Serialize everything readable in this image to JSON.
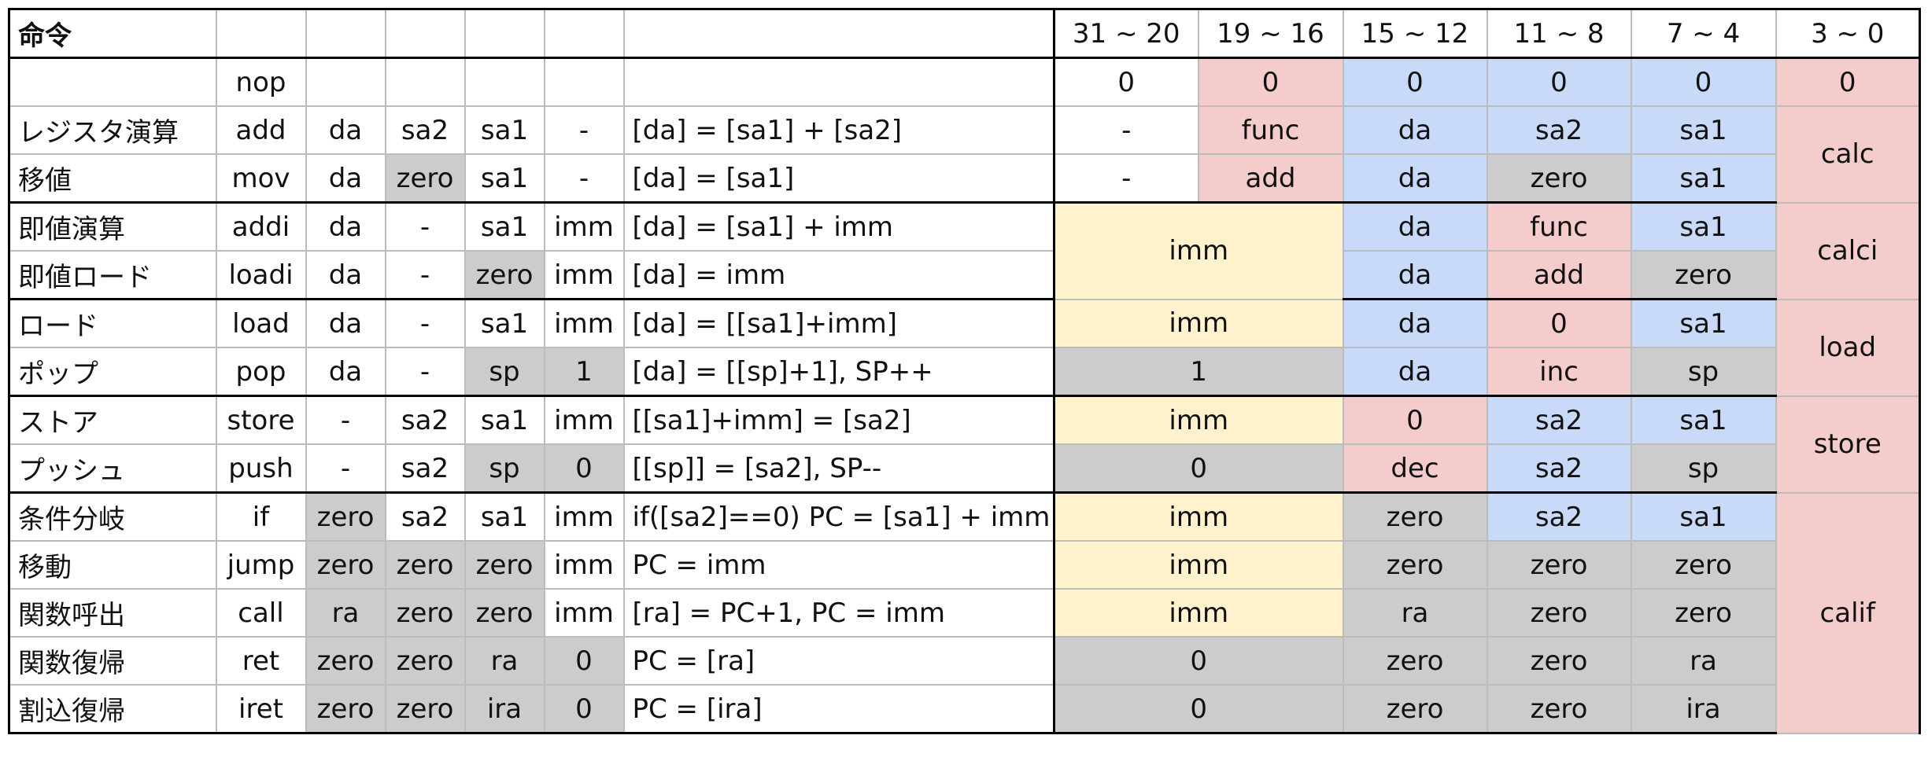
{
  "header": [
    "命令",
    "",
    "",
    "",
    "",
    "",
    "",
    "31 ~ 20",
    "19 ~ 16",
    "15 ~ 12",
    "11 ~ 8",
    "7 ~ 4",
    "3 ~ 0"
  ],
  "rows": {
    "nop": {
      "name": "",
      "mn": "nop",
      "f1": "",
      "f2": "",
      "f3": "",
      "f4": "",
      "desc": "",
      "b31": "0",
      "b19": "0",
      "b15": "0",
      "b11": "0",
      "b7": "0",
      "b3": "0"
    },
    "add": {
      "name": "レジスタ演算",
      "mn": "add",
      "f1": "da",
      "f2": "sa2",
      "f3": "sa1",
      "f4": "-",
      "desc": "[da] = [sa1] + [sa2]",
      "b31": "-",
      "b19": "func",
      "b15": "da",
      "b11": "sa2",
      "b7": "sa1",
      "b3": "calc"
    },
    "mov": {
      "name": "移値",
      "mn": "mov",
      "f1": "da",
      "f2": "zero",
      "f3": "sa1",
      "f4": "-",
      "desc": "[da] = [sa1]",
      "b31": "-",
      "b19": "add",
      "b15": "da",
      "b11": "zero",
      "b7": "sa1"
    },
    "addi": {
      "name": "即値演算",
      "mn": "addi",
      "f1": "da",
      "f2": "-",
      "f3": "sa1",
      "f4": "imm",
      "desc": "[da] = [sa1] + imm",
      "b31": "imm",
      "b15": "da",
      "b11": "func",
      "b7": "sa1",
      "b3": "calci"
    },
    "loadi": {
      "name": "即値ロード",
      "mn": "loadi",
      "f1": "da",
      "f2": "-",
      "f3": "zero",
      "f4": "imm",
      "desc": "[da] = imm",
      "b15": "da",
      "b11": "add",
      "b7": "zero"
    },
    "load": {
      "name": "ロード",
      "mn": "load",
      "f1": "da",
      "f2": "-",
      "f3": "sa1",
      "f4": "imm",
      "desc": "[da] = [[sa1]+imm]",
      "b31": "imm",
      "b15": "da",
      "b11": "0",
      "b7": "sa1",
      "b3": "load"
    },
    "pop": {
      "name": "ポップ",
      "mn": "pop",
      "f1": "da",
      "f2": "-",
      "f3": "sp",
      "f4": "1",
      "desc": "[da] = [[sp]+1], SP++",
      "b31": "1",
      "b15": "da",
      "b11": "inc",
      "b7": "sp"
    },
    "store": {
      "name": "ストア",
      "mn": "store",
      "f1": "-",
      "f2": "sa2",
      "f3": "sa1",
      "f4": "imm",
      "desc": "[[sa1]+imm] = [sa2]",
      "b31": "imm",
      "b15": "0",
      "b11": "sa2",
      "b7": "sa1",
      "b3": "store"
    },
    "push": {
      "name": "プッシュ",
      "mn": "push",
      "f1": "-",
      "f2": "sa2",
      "f3": "sp",
      "f4": "0",
      "desc": "[[sp]] = [sa2], SP--",
      "b31": "0",
      "b15": "dec",
      "b11": "sa2",
      "b7": "sp"
    },
    "if": {
      "name": "条件分岐",
      "mn": "if",
      "f1": "zero",
      "f2": "sa2",
      "f3": "sa1",
      "f4": "imm",
      "desc": "if([sa2]==0) PC = [sa1] + imm",
      "b31": "imm",
      "b15": "zero",
      "b11": "sa2",
      "b7": "sa1",
      "b3": "calif"
    },
    "jump": {
      "name": "移動",
      "mn": "jump",
      "f1": "zero",
      "f2": "zero",
      "f3": "zero",
      "f4": "imm",
      "desc": "PC = imm",
      "b31": "imm",
      "b15": "zero",
      "b11": "zero",
      "b7": "zero"
    },
    "call": {
      "name": "関数呼出",
      "mn": "call",
      "f1": "ra",
      "f2": "zero",
      "f3": "zero",
      "f4": "imm",
      "desc": "[ra] = PC+1, PC = imm",
      "b31": "imm",
      "b15": "ra",
      "b11": "zero",
      "b7": "zero"
    },
    "ret": {
      "name": "関数復帰",
      "mn": "ret",
      "f1": "zero",
      "f2": "zero",
      "f3": "ra",
      "f4": "0",
      "desc": "PC = [ra]",
      "b31": "0",
      "b15": "zero",
      "b11": "zero",
      "b7": "ra"
    },
    "iret": {
      "name": "割込復帰",
      "mn": "iret",
      "f1": "zero",
      "f2": "zero",
      "f3": "ira",
      "f4": "0",
      "desc": "PC = [ira]",
      "b31": "0",
      "b15": "zero",
      "b11": "zero",
      "b7": "ira"
    }
  },
  "colors": {
    "red": "#f4cccc",
    "blue": "#c9daf8",
    "yellow": "#fff2cc",
    "gray": "#cccccc"
  }
}
